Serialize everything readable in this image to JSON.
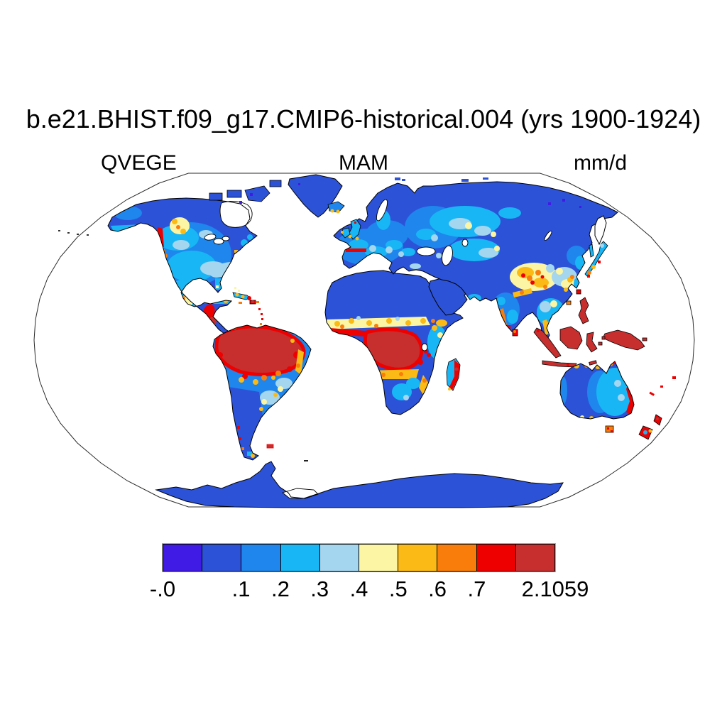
{
  "title": "b.e21.BHIST.f09_g17.CMIP6-historical.004 (yrs 1900-1924)",
  "subtitle": {
    "left": "QVEGE",
    "center": "MAM",
    "right": "mm/d"
  },
  "colorbar": {
    "labels": [
      "-.0",
      ".1",
      ".2",
      ".3",
      ".4",
      ".5",
      ".6",
      ".7",
      "2.1059"
    ],
    "label_positions_pct": [
      0,
      20,
      30,
      40,
      50,
      60,
      70,
      80,
      100
    ],
    "colors": [
      "#401AE5",
      "#2C52D8",
      "#1E86EC",
      "#18B6F4",
      "#A4D6F0",
      "#FCF6A4",
      "#FBBA16",
      "#F97D0A",
      "#EE0000",
      "#C72E2E"
    ]
  },
  "chart_data": {
    "type": "heatmap",
    "title": "b.e21.BHIST.f09_g17.CMIP6-historical.004 (yrs 1900-1924)",
    "variable": "QVEGE",
    "season": "MAM",
    "units": "mm/d",
    "projection": "Robinson world map, white ocean, black coastlines",
    "contour_levels": [
      0.0,
      0.1,
      0.2,
      0.3,
      0.4,
      0.5,
      0.6,
      0.7
    ],
    "level_labels": [
      "-.0",
      ".1",
      ".2",
      ".3",
      ".4",
      ".5",
      ".6",
      ".7"
    ],
    "data_max": 2.1059,
    "palette": [
      "#401AE5",
      "#2C52D8",
      "#1E86EC",
      "#18B6F4",
      "#A4D6F0",
      "#FCF6A4",
      "#FBBA16",
      "#F97D0A",
      "#EE0000",
      "#C72E2E"
    ],
    "legend_position": "bottom horizontal label bar",
    "visual_summary": {
      "highest_band_above_0.7": [
        "Amazon Basin",
        "Congo Basin and Guinea Coast",
        "Indonesia, Borneo, New Guinea, Philippines",
        "Central America and Caribbean islands",
        "Pacific Northwest coastal strip",
        "north coast of Spain",
        "east Australian coast, Tasmania, New Zealand",
        "east Madagascar",
        "southern India tip and Sri Lanka"
      ],
      "low_band_0_to_0.1": [
        "Sahara and Arabian Peninsula",
        "Siberia and northern Canada",
        "Greenland",
        "Antarctica",
        "interior Australia",
        "Patagonia",
        "Tibetan Plateau margins in blue"
      ],
      "mid_bands_0.1_to_0.4": [
        "central United States",
        "Europe",
        "western Siberia",
        "eastern Brazil",
        "East Africa",
        "eastern China",
        "eastern Australia"
      ],
      "orange_yellow_spots_0.4_to_0.7": [
        "British Columbia patch",
        "Sahel band",
        "Tibet/Sichuan cluster",
        "Indochina",
        "Mexico",
        "southeast Brazil fringe"
      ]
    }
  }
}
